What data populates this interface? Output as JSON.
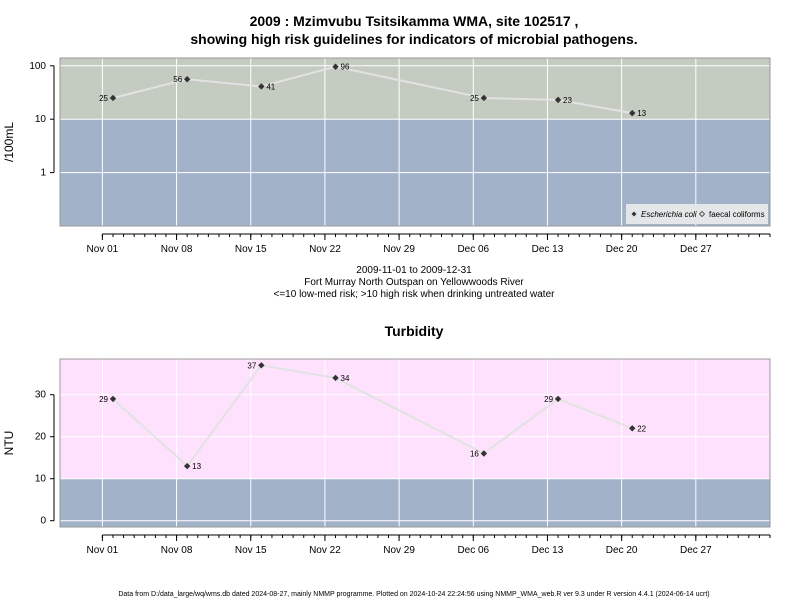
{
  "figure": {
    "title_line1": "2009 : Mzimvubu Tsitsikamma WMA, site 102517 ,",
    "title_line2": "showing high risk guidelines for indicators of microbial pathogens.",
    "period": "2009-11-01 to 2009-12-31",
    "location": "Fort Murray North Outspan on Yellowwoods River",
    "risk_note": "<=10 low-med risk; >10 high risk when drinking untreated water",
    "footer": "Data from D:/data_large/wq/wms.db dated 2024-08-27, mainly NMMP programme. Plotted on 2024-10-24 22:24:56 using NMMP_WMA_web.R ver 9.3 under R version 4.4.1 (2024-06-14 ucrt)"
  },
  "colors": {
    "high_risk_band": "#c4cbc0",
    "low_risk_band": "#a2b2c9",
    "turbidity_high_band": "#fde1fd",
    "grid": "#ffffff",
    "series_line": "#e2e2e2",
    "marker": "#333333",
    "legend_bg": "#e3e7e7"
  },
  "chart_data": [
    {
      "type": "line",
      "title": "",
      "ylabel": "/100mL",
      "xlabel": "",
      "y_scale": "log",
      "ylim": [
        0.1,
        140
      ],
      "xlim": [
        "2009-10-28",
        "2010-01-03"
      ],
      "y_ticks": [
        1,
        10,
        100
      ],
      "y_tick_labels": [
        "1",
        "10",
        "100"
      ],
      "x_ticks": [
        "2009-11-01",
        "2009-11-08",
        "2009-11-15",
        "2009-11-22",
        "2009-11-29",
        "2009-12-06",
        "2009-12-13",
        "2009-12-20",
        "2009-12-27"
      ],
      "x_tick_labels": [
        "Nov 01",
        "Nov 08",
        "Nov 15",
        "Nov 22",
        "Nov 29",
        "Dec 06",
        "Dec 13",
        "Dec 20",
        "Dec 27"
      ],
      "threshold": 10,
      "grid": true,
      "legend_position": "bottom-right",
      "legend": [
        "Escherichia coli",
        "faecal coliforms"
      ],
      "series": [
        {
          "name": "Escherichia coli",
          "x": [
            "2009-11-02",
            "2009-11-09",
            "2009-11-16",
            "2009-11-23",
            "2009-12-07",
            "2009-12-14",
            "2009-12-21"
          ],
          "values": [
            25,
            56,
            41,
            96,
            25,
            23,
            13
          ],
          "labels": [
            "25",
            "56",
            "41",
            "96",
            "25",
            "23",
            "13"
          ]
        }
      ]
    },
    {
      "type": "line",
      "title": "Turbidity",
      "ylabel": "NTU",
      "xlabel": "",
      "ylim": [
        -1.5,
        38.5
      ],
      "xlim": [
        "2009-10-28",
        "2010-01-03"
      ],
      "y_ticks": [
        0,
        10,
        20,
        30
      ],
      "y_tick_labels": [
        "0",
        "10",
        "20",
        "30"
      ],
      "x_ticks": [
        "2009-11-01",
        "2009-11-08",
        "2009-11-15",
        "2009-11-22",
        "2009-11-29",
        "2009-12-06",
        "2009-12-13",
        "2009-12-20",
        "2009-12-27"
      ],
      "x_tick_labels": [
        "Nov 01",
        "Nov 08",
        "Nov 15",
        "Nov 22",
        "Nov 29",
        "Dec 06",
        "Dec 13",
        "Dec 20",
        "Dec 27"
      ],
      "threshold": 10,
      "grid": true,
      "series": [
        {
          "x": [
            "2009-11-02",
            "2009-11-09",
            "2009-11-16",
            "2009-11-23",
            "2009-12-07",
            "2009-12-14",
            "2009-12-21"
          ],
          "values": [
            29,
            13,
            37,
            34,
            16,
            29,
            22
          ],
          "labels": [
            "29",
            "13",
            "37",
            "34",
            "16",
            "29",
            "22"
          ]
        }
      ]
    }
  ]
}
